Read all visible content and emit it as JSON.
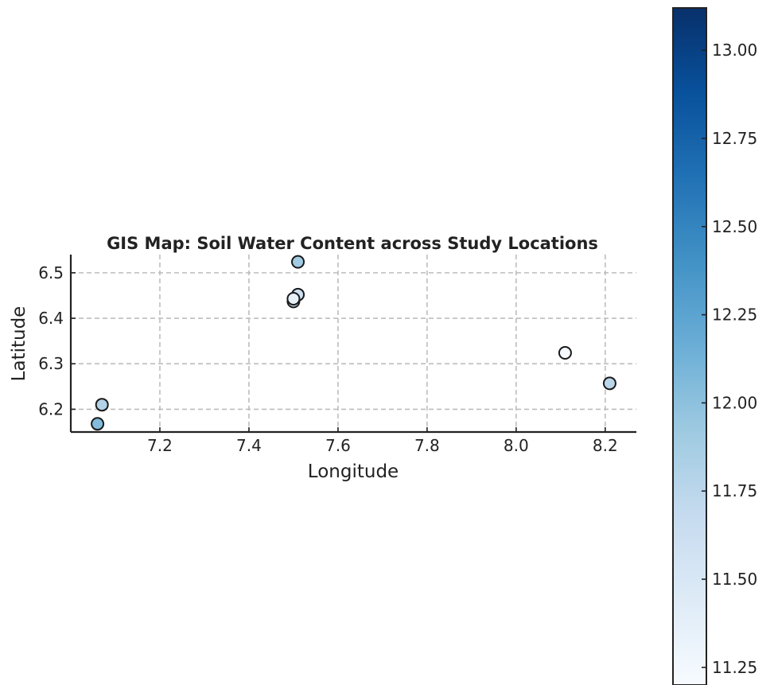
{
  "chart_data": {
    "type": "scatter",
    "title": "GIS Map: Soil Water Content across Study Locations",
    "xlabel": "Longitude",
    "ylabel": "Latitude",
    "xlim": [
      7.0,
      8.27
    ],
    "ylim": [
      6.15,
      6.54
    ],
    "xticks": [
      7.2,
      7.4,
      7.6,
      7.8,
      8.0,
      8.2
    ],
    "xtick_labels": [
      "7.2",
      "7.4",
      "7.6",
      "7.8",
      "8.0",
      "8.2"
    ],
    "yticks": [
      6.2,
      6.3,
      6.4,
      6.5
    ],
    "ytick_labels": [
      "6.2",
      "6.3",
      "6.4",
      "6.5"
    ],
    "grid": true,
    "points": [
      {
        "x": 7.51,
        "y": 6.524,
        "value": 11.9
      },
      {
        "x": 7.51,
        "y": 6.452,
        "value": 11.6
      },
      {
        "x": 7.5,
        "y": 6.437,
        "value": 11.7
      },
      {
        "x": 7.5,
        "y": 6.443,
        "value": 11.35
      },
      {
        "x": 8.11,
        "y": 6.324,
        "value": 11.2
      },
      {
        "x": 8.21,
        "y": 6.257,
        "value": 11.75
      },
      {
        "x": 7.07,
        "y": 6.21,
        "value": 11.8
      },
      {
        "x": 7.06,
        "y": 6.168,
        "value": 12.05
      }
    ],
    "colorbar": {
      "cmap": "Blues",
      "range": [
        11.2,
        13.12
      ],
      "ticks": [
        11.25,
        11.5,
        11.75,
        12.0,
        12.25,
        12.5,
        12.75,
        13.0
      ],
      "tick_labels": [
        "11.25",
        "11.50",
        "11.75",
        "12.00",
        "12.25",
        "12.50",
        "12.75",
        "13.00"
      ]
    }
  }
}
